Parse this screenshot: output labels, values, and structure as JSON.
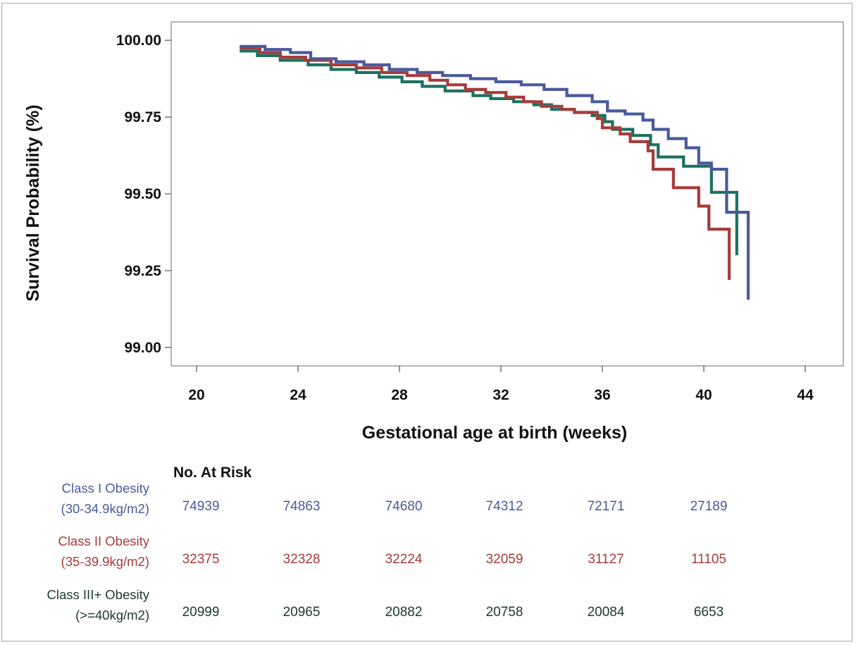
{
  "chart_data": {
    "type": "line",
    "subtype": "kaplan-meier step",
    "xlabel": "Gestational age at birth (weeks)",
    "ylabel": "Survival Probability (%)",
    "xlim": [
      19,
      45.5
    ],
    "ylim": [
      98.94,
      100.06
    ],
    "xticks": [
      20,
      24,
      28,
      32,
      36,
      40,
      44
    ],
    "yticks": [
      "100.00",
      "99.75",
      "99.50",
      "99.25",
      "99.00"
    ],
    "grid": false,
    "legend": "none",
    "series": [
      {
        "name": "Class I Obesity (30-34.9kg/m2)",
        "color": "#4a5a9c",
        "points": [
          [
            21.7,
            99.98
          ],
          [
            22.7,
            99.97
          ],
          [
            23.7,
            99.96
          ],
          [
            24.5,
            99.94
          ],
          [
            25.5,
            99.93
          ],
          [
            26.6,
            99.92
          ],
          [
            27.6,
            99.905
          ],
          [
            28.7,
            99.895
          ],
          [
            29.7,
            99.885
          ],
          [
            30.8,
            99.875
          ],
          [
            31.8,
            99.865
          ],
          [
            32.8,
            99.855
          ],
          [
            33.7,
            99.84
          ],
          [
            34.6,
            99.82
          ],
          [
            35.6,
            99.8
          ],
          [
            36.2,
            99.77
          ],
          [
            36.9,
            99.76
          ],
          [
            37.6,
            99.74
          ],
          [
            38.0,
            99.71
          ],
          [
            38.6,
            99.68
          ],
          [
            39.3,
            99.65
          ],
          [
            39.8,
            99.6
          ],
          [
            40.3,
            99.58
          ],
          [
            40.9,
            99.44
          ],
          [
            41.75,
            99.44
          ],
          [
            41.75,
            99.155
          ]
        ]
      },
      {
        "name": "Class II Obesity (35-39.9kg/m2)",
        "color": "#a63c3a",
        "points": [
          [
            21.7,
            99.975
          ],
          [
            22.5,
            99.96
          ],
          [
            23.3,
            99.945
          ],
          [
            24.3,
            99.935
          ],
          [
            25.3,
            99.92
          ],
          [
            26.3,
            99.91
          ],
          [
            27.3,
            99.895
          ],
          [
            28.3,
            99.885
          ],
          [
            29.2,
            99.87
          ],
          [
            29.9,
            99.855
          ],
          [
            30.6,
            99.84
          ],
          [
            31.4,
            99.83
          ],
          [
            32.2,
            99.815
          ],
          [
            32.9,
            99.8
          ],
          [
            33.6,
            99.785
          ],
          [
            34.4,
            99.775
          ],
          [
            34.9,
            99.765
          ],
          [
            35.8,
            99.745
          ],
          [
            36.0,
            99.715
          ],
          [
            36.7,
            99.695
          ],
          [
            37.1,
            99.67
          ],
          [
            37.8,
            99.64
          ],
          [
            38.0,
            99.58
          ],
          [
            38.8,
            99.52
          ],
          [
            39.8,
            99.46
          ],
          [
            40.2,
            99.385
          ],
          [
            41.0,
            99.385
          ],
          [
            41.0,
            99.22
          ]
        ]
      },
      {
        "name": "Class III+ Obesity (>=40kg/m2)",
        "color": "#1e7060",
        "points": [
          [
            21.7,
            99.965
          ],
          [
            22.4,
            99.95
          ],
          [
            23.3,
            99.935
          ],
          [
            24.4,
            99.92
          ],
          [
            25.3,
            99.905
          ],
          [
            26.3,
            99.895
          ],
          [
            27.2,
            99.88
          ],
          [
            28.1,
            99.865
          ],
          [
            28.9,
            99.85
          ],
          [
            29.8,
            99.835
          ],
          [
            30.9,
            99.82
          ],
          [
            31.6,
            99.81
          ],
          [
            32.5,
            99.8
          ],
          [
            33.3,
            99.79
          ],
          [
            34.0,
            99.775
          ],
          [
            34.9,
            99.765
          ],
          [
            35.6,
            99.755
          ],
          [
            36.1,
            99.735
          ],
          [
            36.4,
            99.71
          ],
          [
            37.2,
            99.69
          ],
          [
            37.9,
            99.66
          ],
          [
            38.2,
            99.62
          ],
          [
            39.2,
            99.59
          ],
          [
            40.3,
            99.56
          ],
          [
            40.3,
            99.505
          ],
          [
            41.3,
            99.505
          ],
          [
            41.3,
            99.3
          ]
        ]
      }
    ],
    "risk_table": {
      "title": "No. At Risk",
      "rows": [
        {
          "label_line1": "Class I Obesity",
          "label_line2": "(30-34.9kg/m2)",
          "color": "#4a5a9c",
          "values": [
            "74939",
            "74863",
            "74680",
            "74312",
            "72171",
            "27189"
          ]
        },
        {
          "label_line1": "Class II Obesity",
          "label_line2": "(35-39.9kg/m2)",
          "color": "#a63c3a",
          "values": [
            "32375",
            "32328",
            "32224",
            "32059",
            "31127",
            "11105"
          ]
        },
        {
          "label_line1": "Class III+ Obesity",
          "label_line2": "(>=40kg/m2)",
          "color": "#1b3a2a",
          "values": [
            "20999",
            "20965",
            "20882",
            "20758",
            "20084",
            "6653"
          ]
        }
      ]
    }
  }
}
